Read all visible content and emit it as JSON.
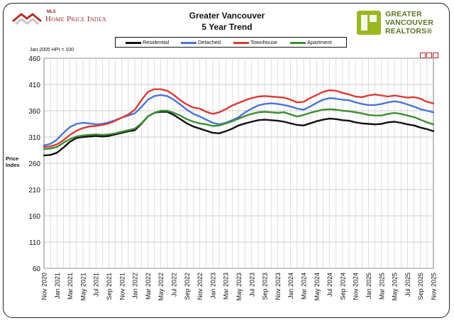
{
  "header": {
    "mls_small": "MLS",
    "mls_label": "Home Price Index",
    "title_line1": "Greater Vancouver",
    "title_line2": "5 Year Trend",
    "org_line1": "GREATER",
    "org_line2": "VANCOUVER",
    "org_line3": "REALTORS®"
  },
  "note": "Jan 2005 HPI = 100",
  "y_title_line1": "Price",
  "y_title_line2": "Index",
  "legend": [
    {
      "name": "Residential",
      "color": "#111111"
    },
    {
      "name": "Detached",
      "color": "#4a74d9"
    },
    {
      "name": "Townhouse",
      "color": "#d93b35"
    },
    {
      "name": "Apartment",
      "color": "#3e8d34"
    }
  ],
  "chart_data": {
    "type": "line",
    "title": "Greater Vancouver 5 Year Trend",
    "xlabel": "",
    "ylabel": "Price Index",
    "ylim": [
      60,
      460
    ],
    "yticks": [
      60,
      110,
      160,
      210,
      260,
      310,
      360,
      410,
      460
    ],
    "grid": true,
    "legend_position": "top",
    "x_tick_labels": [
      "Nov 2020",
      "Jan 2021",
      "Mar 2021",
      "May 2021",
      "Jul 2021",
      "Sep 2021",
      "Nov 2021",
      "Jan 2022",
      "Mar 2022",
      "May 2022",
      "Jul 2022",
      "Sep 2022",
      "Nov 2022",
      "Jan 2023",
      "Mar 2023",
      "May 2023",
      "Jul 2023",
      "Sep 2023",
      "Nov 2023",
      "Jan 2024",
      "Mar 2024",
      "May 2024",
      "Jul 2024",
      "Sep 2024",
      "Nov 2024",
      "Jan 2025",
      "Mar 2025",
      "May 2025",
      "Jul 2025",
      "Sep 2025",
      "Nov 2025"
    ],
    "series": [
      {
        "name": "Residential",
        "color": "#111111",
        "values": [
          275,
          276,
          280,
          290,
          301,
          308,
          310,
          311,
          312,
          311,
          312,
          315,
          318,
          321,
          323,
          335,
          349,
          356,
          358,
          358,
          352,
          344,
          336,
          330,
          326,
          322,
          318,
          317,
          321,
          326,
          332,
          336,
          339,
          342,
          343,
          342,
          341,
          339,
          336,
          333,
          332,
          336,
          340,
          343,
          345,
          344,
          342,
          341,
          338,
          336,
          335,
          334,
          335,
          338,
          339,
          337,
          334,
          332,
          328,
          325,
          321
        ]
      },
      {
        "name": "Detached",
        "color": "#4a74d9",
        "values": [
          294,
          297,
          305,
          318,
          329,
          335,
          337,
          336,
          334,
          335,
          338,
          342,
          347,
          351,
          355,
          367,
          381,
          388,
          390,
          388,
          381,
          372,
          362,
          354,
          349,
          343,
          337,
          334,
          337,
          342,
          348,
          357,
          364,
          370,
          373,
          374,
          373,
          371,
          368,
          364,
          362,
          368,
          375,
          381,
          384,
          383,
          381,
          380,
          376,
          373,
          371,
          371,
          373,
          376,
          378,
          376,
          372,
          368,
          363,
          360,
          357
        ]
      },
      {
        "name": "Townhouse",
        "color": "#d93b35",
        "values": [
          291,
          292,
          296,
          304,
          314,
          322,
          327,
          330,
          331,
          333,
          336,
          341,
          347,
          353,
          362,
          380,
          396,
          401,
          401,
          398,
          390,
          380,
          372,
          366,
          364,
          358,
          354,
          357,
          363,
          370,
          375,
          380,
          384,
          387,
          388,
          387,
          386,
          385,
          381,
          376,
          377,
          384,
          390,
          396,
          399,
          398,
          394,
          391,
          387,
          386,
          389,
          391,
          389,
          387,
          389,
          387,
          385,
          386,
          383,
          377,
          374
        ]
      },
      {
        "name": "Apartment",
        "color": "#3e8d34",
        "values": [
          287,
          288,
          291,
          299,
          306,
          311,
          313,
          314,
          315,
          314,
          315,
          317,
          320,
          323,
          326,
          336,
          349,
          356,
          360,
          360,
          356,
          351,
          344,
          339,
          336,
          334,
          331,
          332,
          336,
          340,
          345,
          350,
          354,
          357,
          358,
          357,
          356,
          357,
          353,
          349,
          352,
          356,
          359,
          362,
          363,
          362,
          360,
          359,
          357,
          355,
          352,
          351,
          351,
          354,
          356,
          354,
          351,
          348,
          343,
          338,
          334
        ]
      }
    ]
  }
}
